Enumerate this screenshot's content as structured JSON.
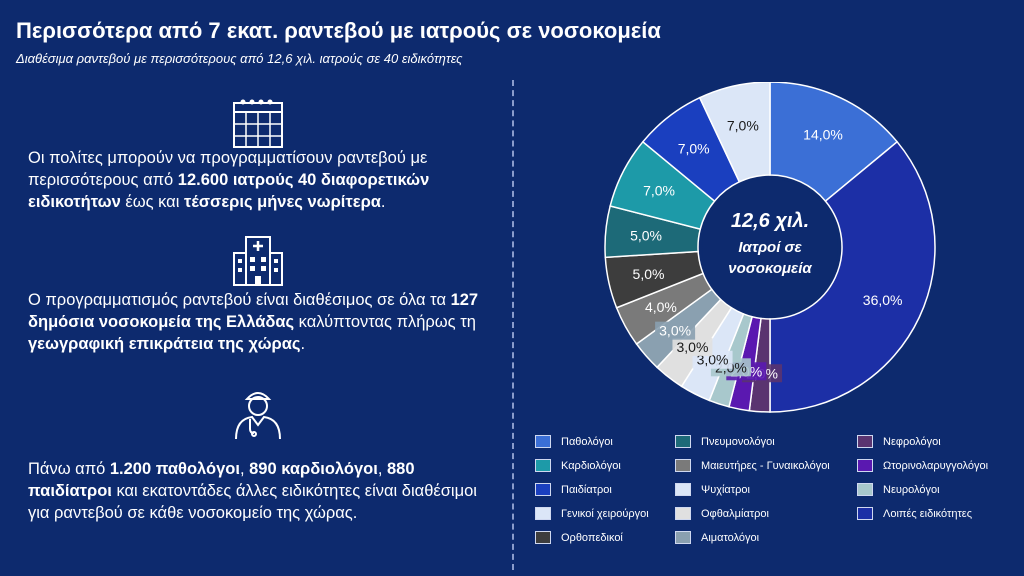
{
  "title": "Περισσότερα από 7 εκατ. ραντεβού με ιατρούς σε νοσοκομεία",
  "subtitle": "Διαθέσιμα ραντεβού με περισσότερους από 12,6 χιλ. ιατρούς σε 40 ειδικότητες",
  "paragraphs": [
    [
      {
        "t": "Οι πολίτες μπορούν να προγραμματίσουν ραντεβού με περισσότερους από ",
        "b": false
      },
      {
        "t": "12.600 ιατρούς 40 διαφορετικών ειδικοτήτων",
        "b": true
      },
      {
        "t": " έως και ",
        "b": false
      },
      {
        "t": "τέσσερις μήνες νωρίτερα",
        "b": true
      },
      {
        "t": ".",
        "b": false
      }
    ],
    [
      {
        "t": "Ο προγραμματισμός ραντεβού είναι διαθέσιμος σε όλα τα ",
        "b": false
      },
      {
        "t": "127 δημόσια νοσοκομεία της Ελλάδας",
        "b": true
      },
      {
        "t": " καλύπτοντας πλήρως τη ",
        "b": false
      },
      {
        "t": "γεωγραφική επικράτεια της χώρας",
        "b": true
      },
      {
        "t": ".",
        "b": false
      }
    ],
    [
      {
        "t": "Πάνω από ",
        "b": false
      },
      {
        "t": "1.200 παθολόγοι",
        "b": true
      },
      {
        "t": ", ",
        "b": false
      },
      {
        "t": "890 καρδιολόγοι",
        "b": true
      },
      {
        "t": ", ",
        "b": false
      },
      {
        "t": "880 παιδίατροι",
        "b": true
      },
      {
        "t": " και εκατοντάδες άλλες ειδικότητες είναι διαθέσιμοι για ραντεβού σε κάθε νοσοκομείο της χώρας.",
        "b": false
      }
    ]
  ],
  "icons": [
    "calendar-icon",
    "hospital-icon",
    "doctor-icon"
  ],
  "chart_data": {
    "type": "pie",
    "donut": true,
    "center_label": [
      "12,6 χιλ.",
      "Ιατροί σε",
      "νοσοκομεία"
    ],
    "slices": [
      {
        "name": "Παθολόγοι",
        "value": 14.0,
        "label": "14,0%",
        "color": "#3b6fd6"
      },
      {
        "name": "Λοιπές ειδικότητες",
        "value": 36.0,
        "label": "36,0%",
        "color": "#1c2fa6"
      },
      {
        "name": "Νεφρολόγοι",
        "value": 2.0,
        "label": "2,0%",
        "color": "#5a3470"
      },
      {
        "name": "Ωτορινολαρυγγολόγοι",
        "value": 2.0,
        "label": "2,0%",
        "color": "#5a18b0"
      },
      {
        "name": "Νευρολόγοι",
        "value": 2.0,
        "label": "2,0%",
        "color": "#a8c8cc"
      },
      {
        "name": "Ψυχίατροι",
        "value": 3.0,
        "label": "3,0%",
        "color": "#dbe6f7"
      },
      {
        "name": "Οφθαλμίατροι",
        "value": 3.0,
        "label": "3,0%",
        "color": "#e0e0e0"
      },
      {
        "name": "Αιματολόγοι",
        "value": 3.0,
        "label": "3,0%",
        "color": "#8aa0b0"
      },
      {
        "name": "Μαιευτήρες - Γυναικολόγοι",
        "value": 4.0,
        "label": "4,0%",
        "color": "#7a7a7a"
      },
      {
        "name": "Ορθοπεδικοί",
        "value": 5.0,
        "label": "5,0%",
        "color": "#3d3d3d"
      },
      {
        "name": "Πνευμονολόγοι",
        "value": 5.0,
        "label": "5,0%",
        "color": "#1d6a78"
      },
      {
        "name": "Καρδιολόγοι",
        "value": 7.0,
        "label": "7,0%",
        "color": "#1d9aa8"
      },
      {
        "name": "Παιδίατροι",
        "value": 7.0,
        "label": "7,0%",
        "color": "#1a3fbf"
      },
      {
        "name": "Γενικοί χειρούργοι",
        "value": 7.0,
        "label": "7,0%",
        "color": "#dbe6f7"
      }
    ],
    "legend": [
      "Παθολόγοι",
      "Πνευμονολόγοι",
      "Νεφρολόγοι",
      "Καρδιολόγοι",
      "Μαιευτήρες - Γυναικολόγοι",
      "Ωτορινολαρυγγολόγοι",
      "Παιδίατροι",
      "Ψυχίατροι",
      "Νευρολόγοι",
      "Γενικοί χειρούργοι",
      "Οφθαλμίατροι",
      "Λοιπές ειδικότητες",
      "Ορθοπεδικοί",
      "Αιματολόγοι"
    ]
  }
}
